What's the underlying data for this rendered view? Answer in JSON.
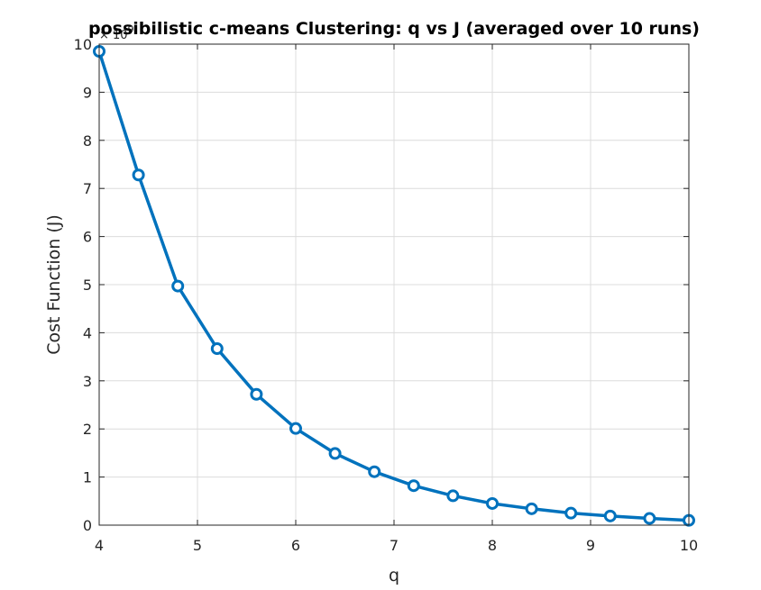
{
  "chart_data": {
    "type": "line",
    "title": "possibilistic c-means Clustering: q vs J (averaged over 10 runs)",
    "xlabel": "q",
    "ylabel": "Cost Function (J)",
    "y_exponent_label": "× 10",
    "y_exponent_power": "9",
    "xlim": [
      4,
      10
    ],
    "ylim": [
      0,
      10
    ],
    "x_ticks": [
      4,
      5,
      6,
      7,
      8,
      9,
      10
    ],
    "y_ticks": [
      0,
      1,
      2,
      3,
      4,
      5,
      6,
      7,
      8,
      9,
      10
    ],
    "grid": true,
    "series": [
      {
        "color": "#0072BD",
        "marker": "circle",
        "x": [
          4.0,
          4.4,
          4.8,
          5.2,
          5.6,
          6.0,
          6.4,
          6.8,
          7.2,
          7.6,
          8.0,
          8.4,
          8.8,
          9.2,
          9.6,
          10.0
        ],
        "values": [
          9.85,
          7.28,
          4.97,
          3.67,
          2.72,
          2.01,
          1.49,
          1.11,
          0.82,
          0.61,
          0.45,
          0.34,
          0.25,
          0.19,
          0.14,
          0.1
        ]
      }
    ]
  }
}
